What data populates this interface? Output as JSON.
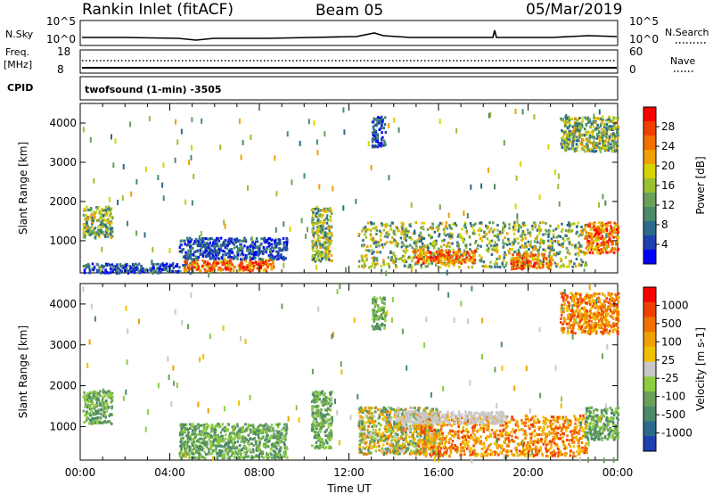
{
  "header": {
    "station": "Rankin Inlet (fitACF)",
    "beam": "Beam 05",
    "date": "05/Mar/2019"
  },
  "meta_panels": {
    "nsky_label": "N.Sky",
    "nsearch_label": "N.Search",
    "freq_label_top": "Freq.",
    "freq_label_unit": "[MHz]",
    "nave_label": "Nave",
    "cpid_label": "CPID",
    "cpid_text": "twofsound (1-min) -3505",
    "noise_ticks": [
      "10^5",
      "10^0"
    ],
    "freq_ticks": [
      "18",
      "8"
    ],
    "nave_ticks": [
      "60",
      "0"
    ]
  },
  "chart_data": [
    {
      "type": "heatmap",
      "name": "power",
      "ylabel": "Slant Range [km]",
      "xlabel": "",
      "x_ticks": [
        "00:00",
        "04:00",
        "08:00",
        "12:00",
        "16:00",
        "20:00",
        "00:00"
      ],
      "y_ticks": [
        1000,
        2000,
        3000,
        4000
      ],
      "ylim": [
        180,
        4500
      ],
      "xlim_hours": [
        0,
        24
      ],
      "colorbar": {
        "label": "Power [dB]",
        "ticks": [
          "4",
          "8",
          "12",
          "16",
          "20",
          "24",
          "28"
        ],
        "colors": [
          "#0000ff",
          "#1f3fb0",
          "#2a6a8a",
          "#4a8a6a",
          "#6aa05a",
          "#9ac030",
          "#d6d400",
          "#f0a000",
          "#f07000",
          "#f04000",
          "#ff0000"
        ]
      },
      "regions": [
        {
          "t": [
            0.1,
            1.4
          ],
          "r": [
            1100,
            1900
          ],
          "level": "mid"
        },
        {
          "t": [
            0.1,
            5.0
          ],
          "r": [
            200,
            450
          ],
          "level": "low"
        },
        {
          "t": [
            4.6,
            8.6
          ],
          "r": [
            250,
            550
          ],
          "level": "high"
        },
        {
          "t": [
            4.4,
            9.2
          ],
          "r": [
            550,
            1100
          ],
          "level": "low"
        },
        {
          "t": [
            10.3,
            11.2
          ],
          "r": [
            500,
            1900
          ],
          "level": "mid"
        },
        {
          "t": [
            12.4,
            22.6
          ],
          "r": [
            350,
            1500
          ],
          "level": "mid"
        },
        {
          "t": [
            14.8,
            17.6
          ],
          "r": [
            450,
            800
          ],
          "level": "high"
        },
        {
          "t": [
            19.2,
            21.0
          ],
          "r": [
            300,
            700
          ],
          "level": "high"
        },
        {
          "t": [
            22.5,
            24.0
          ],
          "r": [
            700,
            1500
          ],
          "level": "high"
        },
        {
          "t": [
            21.4,
            24.0
          ],
          "r": [
            3300,
            4200
          ],
          "level": "mid"
        },
        {
          "t": [
            13.0,
            13.6
          ],
          "r": [
            3400,
            4200
          ],
          "level": "low"
        }
      ]
    },
    {
      "type": "heatmap",
      "name": "velocity",
      "ylabel": "Slant Range [km]",
      "xlabel": "Time UT",
      "x_ticks": [
        "00:00",
        "04:00",
        "08:00",
        "12:00",
        "16:00",
        "20:00",
        "00:00"
      ],
      "y_ticks": [
        1000,
        2000,
        3000,
        4000
      ],
      "ylim": [
        180,
        4500
      ],
      "xlim_hours": [
        0,
        24
      ],
      "colorbar": {
        "label": "Velocity [m s-1]",
        "ticks": [
          "1000",
          "500",
          "100",
          "25",
          "-25",
          "-100",
          "-500",
          "-1000"
        ],
        "colors": [
          "#1f3fb0",
          "#2a6a8a",
          "#4a8a6a",
          "#6aa05a",
          "#8ccc40",
          "#c8c8c8",
          "#f0c000",
          "#f0a000",
          "#f07000",
          "#f04000",
          "#ff0000"
        ]
      },
      "regions": [
        {
          "t": [
            0.1,
            1.4
          ],
          "r": [
            1100,
            1900
          ],
          "level": "pos"
        },
        {
          "t": [
            4.4,
            9.2
          ],
          "r": [
            250,
            1100
          ],
          "level": "pos"
        },
        {
          "t": [
            10.3,
            11.2
          ],
          "r": [
            500,
            1900
          ],
          "level": "pos"
        },
        {
          "t": [
            12.4,
            16.0
          ],
          "r": [
            350,
            1500
          ],
          "level": "mix"
        },
        {
          "t": [
            15.0,
            22.6
          ],
          "r": [
            300,
            1300
          ],
          "level": "neg"
        },
        {
          "t": [
            14.0,
            19.0
          ],
          "r": [
            1100,
            1400
          ],
          "level": "grey"
        },
        {
          "t": [
            22.5,
            24.0
          ],
          "r": [
            700,
            1500
          ],
          "level": "pos"
        },
        {
          "t": [
            21.4,
            24.0
          ],
          "r": [
            3300,
            4300
          ],
          "level": "neg"
        },
        {
          "t": [
            13.0,
            13.6
          ],
          "r": [
            3400,
            4200
          ],
          "level": "pos"
        }
      ]
    }
  ]
}
